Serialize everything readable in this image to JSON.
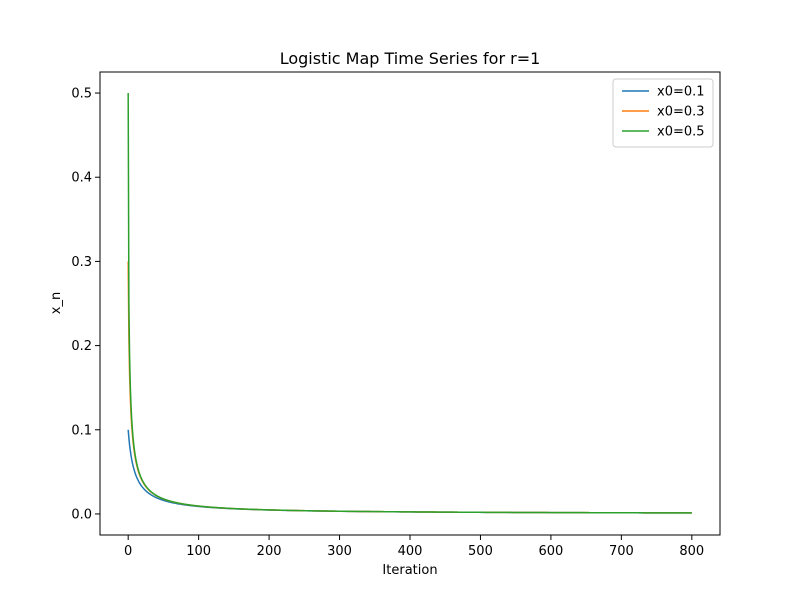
{
  "chart_data": {
    "type": "line",
    "title": "Logistic Map Time Series for r=1",
    "xlabel": "Iteration",
    "ylabel": "x_n",
    "xlim": [
      -40,
      840
    ],
    "ylim": [
      -0.025,
      0.525
    ],
    "x_ticks": [
      0,
      100,
      200,
      300,
      400,
      500,
      600,
      700,
      800
    ],
    "y_ticks": [
      0.0,
      0.1,
      0.2,
      0.3,
      0.4,
      0.5
    ],
    "x_tick_labels": [
      "0",
      "100",
      "200",
      "300",
      "400",
      "500",
      "600",
      "700",
      "800"
    ],
    "y_tick_labels": [
      "0.0",
      "0.1",
      "0.2",
      "0.3",
      "0.4",
      "0.5"
    ],
    "grid": false,
    "legend_position": "top-right",
    "iterations": 800,
    "r": 1,
    "series": [
      {
        "name": "x0=0.1",
        "x0": 0.1,
        "color": "#1f77b4"
      },
      {
        "name": "x0=0.3",
        "x0": 0.3,
        "color": "#ff7f0e"
      },
      {
        "name": "x0=0.5",
        "x0": 0.5,
        "color": "#2ca02c"
      }
    ]
  }
}
